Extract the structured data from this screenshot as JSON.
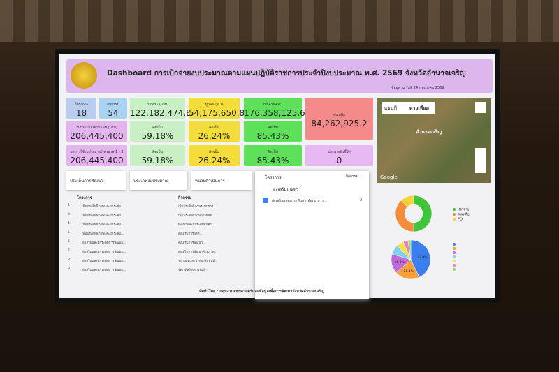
{
  "header": {
    "title": "Dashboard การเบิกจ่ายงบประมาณตามแผนปฏิบัติราชการประจำปีงบประมาณ พ.ศ. 2569 จังหวัดอำนาจเจริญ",
    "date": "ข้อมูล ณ วันที่ 24 กรกฎาคม 2569"
  },
  "kpis": [
    {
      "label": "โครงการ",
      "value": "18",
      "color": "#b9cdee",
      "x": 95,
      "y": 140,
      "w": 43,
      "h": 30
    },
    {
      "label": "กิจกรรม",
      "value": "54",
      "color": "#a9d3f0",
      "x": 142,
      "y": 140,
      "w": 40,
      "h": 30
    },
    {
      "label": "เบิกจ่าย (บาท)",
      "value": "122,182,474.8",
      "color": "#c9efc4",
      "x": 186,
      "y": 140,
      "w": 79,
      "h": 30
    },
    {
      "label": "ผูกพัน (PO)",
      "value": "54,175,650.84",
      "color": "#f4dc3a",
      "x": 270,
      "y": 140,
      "w": 73,
      "h": 30
    },
    {
      "label": "เบิกจ่าย+PO",
      "value": "176,358,125.64",
      "color": "#5fe05a",
      "x": 349,
      "y": 140,
      "w": 83,
      "h": 30
    },
    {
      "label": "คงเหลือ",
      "value": "84,262,925.2",
      "color": "#f48a8a",
      "x": 437,
      "y": 140,
      "w": 97,
      "h": 60
    },
    {
      "label": "งบประมาณตามแผน (บาท)",
      "value": "206,445,400",
      "color": "#e3b4ee",
      "x": 95,
      "y": 173,
      "w": 87,
      "h": 30
    },
    {
      "label": "คิดเป็น",
      "value": "59.18%",
      "color": "#c9efc4",
      "x": 186,
      "y": 173,
      "w": 79,
      "h": 30
    },
    {
      "label": "คิดเป็น",
      "value": "26.24%",
      "color": "#f4dc3a",
      "x": 270,
      "y": 173,
      "w": 73,
      "h": 30
    },
    {
      "label": "คิดเป็น",
      "value": "85.43%",
      "color": "#5fe05a",
      "x": 349,
      "y": 173,
      "w": 83,
      "h": 30
    },
    {
      "label": "ผลการใช้งบประมาณไตรมาส 1 - 3",
      "value": "206,445,400",
      "color": "#e3b4ee",
      "x": 95,
      "y": 208,
      "w": 87,
      "h": 30
    },
    {
      "label": "คิดเป็น",
      "value": "59.18%",
      "color": "#c9efc4",
      "x": 186,
      "y": 208,
      "w": 79,
      "h": 30
    },
    {
      "label": "คิดเป็น",
      "value": "26.24%",
      "color": "#f4dc3a",
      "x": 270,
      "y": 208,
      "w": 73,
      "h": 30
    },
    {
      "label": "คิดเป็น",
      "value": "85.43%",
      "color": "#5fe05a",
      "x": 349,
      "y": 208,
      "w": 83,
      "h": 30
    },
    {
      "label": "ประเภทตัวชี้วัด",
      "value": "0",
      "color": "#e7b8f2",
      "x": 437,
      "y": 208,
      "w": 97,
      "h": 30
    }
  ],
  "filters": [
    "ประเด็นการพัฒนา",
    "ประเภทงบประมาณ",
    "หน่วยดำเนินการ"
  ],
  "table": {
    "headers": [
      "โครงการ",
      "กิจกรรม"
    ],
    "rows": [
      [
        "2",
        "เพิ่มประสิทธิภาพและยกระดับ...",
        "เพิ่มประสิทธิภาพระบบการ..."
      ],
      [
        "3",
        "เพิ่มประสิทธิภาพและยกระดับ...",
        "เพิ่มประสิทธิภาพการผลิต..."
      ],
      [
        "4",
        "เพิ่มประสิทธิภาพและยกระดับ...",
        "พัฒนาและยกระดับสินค้า..."
      ],
      [
        "5",
        "เพิ่มประสิทธิภาพและยกระดับ...",
        "ส่งเสริมการผลิต..."
      ],
      [
        "6",
        "ส่งเสริมและยกระดับการพัฒนา...",
        "ส่งเสริมการพัฒนา..."
      ],
      [
        "7",
        "ส่งเสริมและยกระดับการพัฒนา...",
        "ส่งเสริมการพัฒนาศักยภาพ..."
      ],
      [
        "8",
        "ส่งเสริมและยกระดับการพัฒนา...",
        "ขยายผลและประชาสัมพันธ์..."
      ],
      [
        "9",
        "ส่งเสริมและยกระดับการพัฒนา...",
        "จัดเวทีสร้างการรับรู้..."
      ]
    ]
  },
  "dropdown": {
    "header": "โครงการ",
    "header2": "กิจกรรม",
    "search": "ส่งเสริมเกษตร",
    "item": "ส่งเสริมและยกระดับการพัฒนาการ...",
    "count": "2"
  },
  "map": {
    "tabs": [
      "แผนที่",
      "ดาวเทียม"
    ],
    "place": "อำนาจเจริญ",
    "brand": "Google"
  },
  "donut": {
    "values": [
      50,
      38,
      12
    ],
    "colors": [
      "#3fc43a",
      "#f58c3c",
      "#f4d23a"
    ],
    "legend": [
      "เบิกจ่าย",
      "คงเหลือ",
      "PO"
    ]
  },
  "pie": {
    "values": [
      42.9,
      20.4,
      16.3,
      8,
      6,
      4,
      2.4
    ],
    "colors": [
      "#3a7ef0",
      "#f5a03c",
      "#c06ad8",
      "#7fd0f0",
      "#f4e04a",
      "#e884c4",
      "#9ad86a"
    ],
    "labels": [
      "42.9%",
      "20.4%",
      "16.3%"
    ]
  },
  "footer": "จัดทำโดย : กลุ่มงานยุทธศาสตร์และข้อมูลเพื่อการพัฒนาจังหวัดอำนาจเจริญ"
}
